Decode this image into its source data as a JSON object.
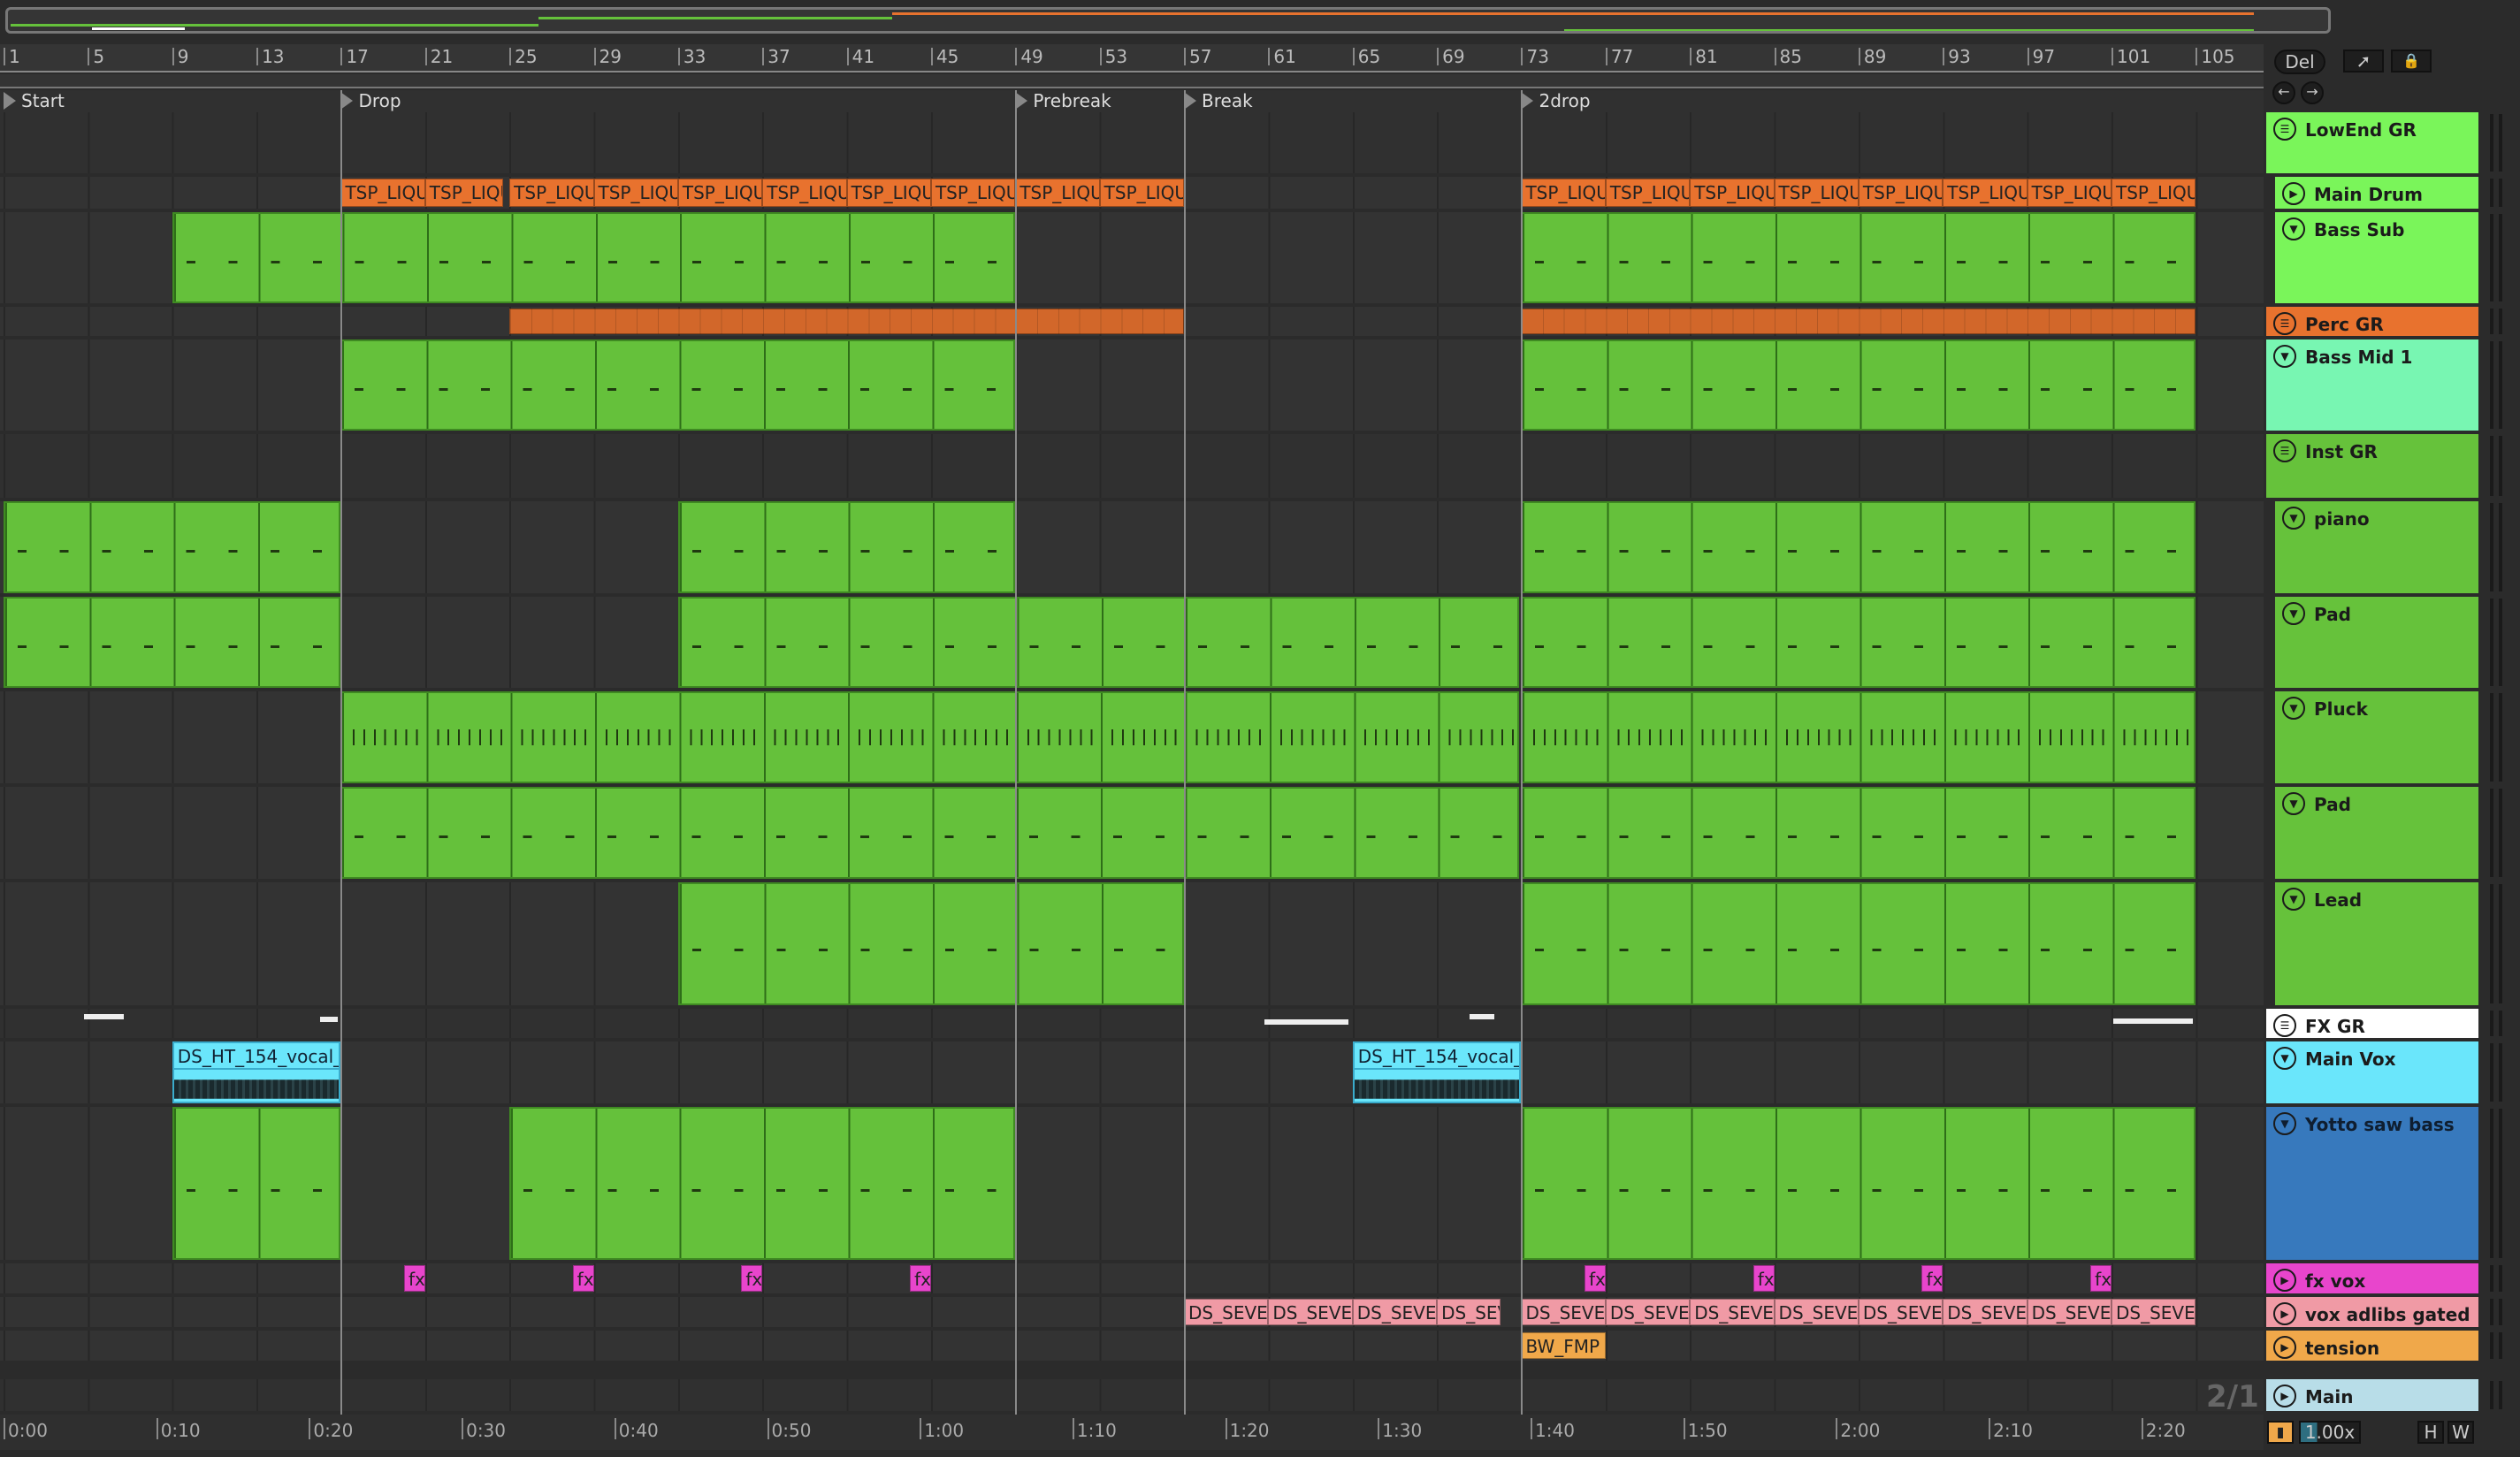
{
  "ruler": {
    "bars": [
      "1",
      "5",
      "9",
      "13",
      "17",
      "21",
      "25",
      "29",
      "33",
      "37",
      "41",
      "45",
      "49",
      "53",
      "57",
      "61",
      "65",
      "69",
      "73",
      "77",
      "81",
      "85",
      "89",
      "93",
      "97",
      "101",
      "105"
    ]
  },
  "locators": [
    {
      "label": "Start",
      "bar": 1
    },
    {
      "label": "Drop",
      "bar": 17
    },
    {
      "label": "Prebreak",
      "bar": 49
    },
    {
      "label": "Break",
      "bar": 57
    },
    {
      "label": "2drop",
      "bar": 73
    }
  ],
  "controls": {
    "delete_label": "Del",
    "draw_icon": "pencil-icon",
    "lock_icon": "lock-icon",
    "back_icon": "arrow-left-icon",
    "forward_icon": "arrow-right-icon"
  },
  "tracks": [
    {
      "name": "LowEnd GR",
      "color": "#7af55a",
      "icon": "group",
      "nested": false,
      "clips": []
    },
    {
      "name": "Main Drum",
      "color": "#7af55a",
      "icon": "play",
      "nested": true,
      "clipColor": "#e8722e",
      "clips": [
        {
          "s": 17,
          "e": 21,
          "label": "TSP_LIQU"
        },
        {
          "s": 21,
          "e": 24.7,
          "label": "TSP_LIQU"
        },
        {
          "s": 25,
          "e": 29,
          "label": "TSP_LIQU"
        },
        {
          "s": 29,
          "e": 33,
          "label": "TSP_LIQU"
        },
        {
          "s": 33,
          "e": 37,
          "label": "TSP_LIQU"
        },
        {
          "s": 37,
          "e": 41,
          "label": "TSP_LIQU"
        },
        {
          "s": 41,
          "e": 45,
          "label": "TSP_LIQU"
        },
        {
          "s": 45,
          "e": 49,
          "label": "TSP_LIQU"
        },
        {
          "s": 49,
          "e": 53,
          "label": "TSP_LIQU"
        },
        {
          "s": 53,
          "e": 57,
          "label": "TSP_LIQU"
        },
        {
          "s": 73,
          "e": 77,
          "label": "TSP_LIQU"
        },
        {
          "s": 77,
          "e": 81,
          "label": "TSP_LIQU"
        },
        {
          "s": 81,
          "e": 85,
          "label": "TSP_LIQU"
        },
        {
          "s": 85,
          "e": 89,
          "label": "TSP_LIQU"
        },
        {
          "s": 89,
          "e": 93,
          "label": "TSP_LIQU"
        },
        {
          "s": 93,
          "e": 97,
          "label": "TSP_LIQU"
        },
        {
          "s": 97,
          "e": 101,
          "label": "TSP_LIQU"
        },
        {
          "s": 101,
          "e": 105,
          "label": "TSP_LIQU"
        }
      ]
    },
    {
      "name": "Bass Sub",
      "color": "#7af55a",
      "icon": "fold",
      "nested": true,
      "clips": [
        {
          "s": 9,
          "e": 49
        },
        {
          "s": 73,
          "e": 105
        }
      ]
    },
    {
      "name": "Perc GR",
      "color": "#e8722e",
      "icon": "group",
      "nested": false,
      "clipColor": "#d2672a",
      "clips": [
        {
          "s": 25,
          "e": 57,
          "label": ""
        },
        {
          "s": 73,
          "e": 105,
          "label": ""
        }
      ]
    },
    {
      "name": "Bass Mid 1",
      "color": "#78f6b2",
      "icon": "fold",
      "nested": false,
      "clips": [
        {
          "s": 17,
          "e": 49
        },
        {
          "s": 73,
          "e": 105
        }
      ]
    },
    {
      "name": "Inst GR",
      "color": "#66c23b",
      "icon": "group",
      "nested": false,
      "clips": []
    },
    {
      "name": "piano",
      "color": "#66c23b",
      "icon": "fold",
      "nested": true,
      "clips": [
        {
          "s": 1,
          "e": 17
        },
        {
          "s": 33,
          "e": 49
        },
        {
          "s": 73,
          "e": 105
        }
      ]
    },
    {
      "name": "Pad",
      "color": "#66c23b",
      "icon": "fold",
      "nested": true,
      "clips": [
        {
          "s": 1,
          "e": 17
        },
        {
          "s": 33,
          "e": 72.9
        },
        {
          "s": 73,
          "e": 105
        }
      ]
    },
    {
      "name": "Pluck",
      "color": "#66c23b",
      "icon": "fold",
      "nested": true,
      "dense": true,
      "clips": [
        {
          "s": 17,
          "e": 72.9
        },
        {
          "s": 73,
          "e": 105
        }
      ]
    },
    {
      "name": "Pad",
      "color": "#66c23b",
      "icon": "fold",
      "nested": true,
      "clips": [
        {
          "s": 17,
          "e": 72.9
        },
        {
          "s": 73,
          "e": 105
        }
      ]
    },
    {
      "name": "Lead",
      "color": "#66c23b",
      "icon": "fold",
      "nested": true,
      "clips": [
        {
          "s": 33,
          "e": 57
        },
        {
          "s": 73,
          "e": 105
        }
      ]
    },
    {
      "name": "FX GR",
      "color": "#ffffff",
      "icon": "group",
      "nested": false,
      "clips": []
    },
    {
      "name": "Main Vox",
      "color": "#6ae6fb",
      "icon": "fold",
      "nested": false,
      "audio": true,
      "clips": [
        {
          "s": 9,
          "e": 17,
          "label": "DS_HT_154_vocal_"
        },
        {
          "s": 65,
          "e": 73,
          "label": "DS_HT_154_vocal_"
        }
      ]
    },
    {
      "name": "Yotto saw bass",
      "color": "#3779bd",
      "icon": "fold",
      "nested": false,
      "clips": [
        {
          "s": 9,
          "e": 17
        },
        {
          "s": 25,
          "e": 49
        },
        {
          "s": 73,
          "e": 105
        }
      ]
    },
    {
      "name": "fx vox",
      "color": "#e845cc",
      "icon": "play",
      "nested": false,
      "clipColor": "#e845cc",
      "clips": [
        {
          "s": 20,
          "e": 21,
          "label": "fx"
        },
        {
          "s": 28,
          "e": 29,
          "label": "fx"
        },
        {
          "s": 36,
          "e": 37,
          "label": "fx"
        },
        {
          "s": 44,
          "e": 45,
          "label": "fx"
        },
        {
          "s": 76,
          "e": 77,
          "label": "fx"
        },
        {
          "s": 84,
          "e": 85,
          "label": "fx"
        },
        {
          "s": 92,
          "e": 93,
          "label": "fx"
        },
        {
          "s": 100,
          "e": 101,
          "label": "fx"
        }
      ]
    },
    {
      "name": "vox adlibs gated",
      "color": "#f09aa5",
      "icon": "play",
      "nested": false,
      "clipColor": "#f09aa5",
      "clips": [
        {
          "s": 57,
          "e": 61,
          "label": "DS_SEVE"
        },
        {
          "s": 61,
          "e": 65,
          "label": "DS_SEVE"
        },
        {
          "s": 65,
          "e": 69,
          "label": "DS_SEVE"
        },
        {
          "s": 69,
          "e": 72,
          "label": "DS_SEVE"
        },
        {
          "s": 73,
          "e": 77,
          "label": "DS_SEVE"
        },
        {
          "s": 77,
          "e": 81,
          "label": "DS_SEVE"
        },
        {
          "s": 81,
          "e": 85,
          "label": "DS_SEVE"
        },
        {
          "s": 85,
          "e": 89,
          "label": "DS_SEVE"
        },
        {
          "s": 89,
          "e": 93,
          "label": "DS_SEVE"
        },
        {
          "s": 93,
          "e": 97,
          "label": "DS_SEVE"
        },
        {
          "s": 97,
          "e": 101,
          "label": "DS_SEVE"
        },
        {
          "s": 101,
          "e": 105,
          "label": "DS_SEVE"
        }
      ]
    },
    {
      "name": "tension",
      "color": "#f0a84a",
      "icon": "play",
      "nested": false,
      "clipColor": "#f0a84a",
      "clips": [
        {
          "s": 73,
          "e": 77,
          "label": "BW_FMP"
        }
      ]
    },
    {
      "name": "Main",
      "color": "#b8dde8",
      "icon": "play",
      "nested": false,
      "clips": []
    }
  ],
  "grid_label": "2/1",
  "time_ruler": [
    "0:00",
    "0:10",
    "0:20",
    "0:30",
    "0:40",
    "0:50",
    "1:00",
    "1:10",
    "1:20",
    "1:30",
    "1:40",
    "1:50",
    "2:00",
    "2:10",
    "2:20"
  ],
  "footer": {
    "waveform_icon": "waveform-icon",
    "zoom_value": "1.00x",
    "h_label": "H",
    "w_label": "W"
  }
}
